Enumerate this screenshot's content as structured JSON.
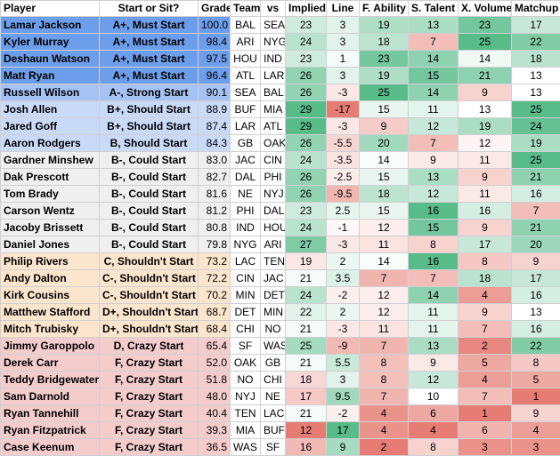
{
  "table": {
    "headers": [
      "Player",
      "Start or Sit?",
      "Grade",
      "Team",
      "vs",
      "Implied",
      "Line",
      "F. Ability",
      "S. Talent",
      "X. Volume",
      "Matchup"
    ],
    "heat_low": "#e67c73",
    "heat_mid": "#ffffff",
    "heat_high": "#57bb8a",
    "rows": [
      {
        "player": "Lamar Jackson",
        "start": "A+, Must Start",
        "grade": "100.0",
        "team": "BAL",
        "vs": "SEA",
        "implied": 23,
        "line": 3,
        "ability": 19,
        "talent": 13,
        "volume": 23,
        "matchup": 17,
        "color": "#6d9eeb"
      },
      {
        "player": "Kyler Murray",
        "start": "A+, Must Start",
        "grade": "98.4",
        "team": "ARI",
        "vs": "NYG",
        "implied": 24,
        "line": 3,
        "ability": 18,
        "talent": 7,
        "volume": 25,
        "matchup": 22,
        "color": "#6d9eeb"
      },
      {
        "player": "Deshaun Watson",
        "start": "A+, Must Start",
        "grade": "97.5",
        "team": "HOU",
        "vs": "IND",
        "implied": 23,
        "line": 1,
        "ability": 23,
        "talent": 14,
        "volume": 14,
        "matchup": 18,
        "color": "#6d9eeb"
      },
      {
        "player": "Matt Ryan",
        "start": "A+, Must Start",
        "grade": "96.4",
        "team": "ATL",
        "vs": "LAR",
        "implied": 26,
        "line": 3,
        "ability": 19,
        "talent": 15,
        "volume": 21,
        "matchup": 13,
        "color": "#6d9eeb"
      },
      {
        "player": "Russell Wilson",
        "start": "A-, Strong Start",
        "grade": "90.1",
        "team": "SEA",
        "vs": "BAL",
        "implied": 26,
        "line": -3,
        "ability": 25,
        "talent": 14,
        "volume": 9,
        "matchup": 13,
        "color": "#a4c2f4"
      },
      {
        "player": "Josh Allen",
        "start": "B+, Should Start",
        "grade": "88.9",
        "team": "BUF",
        "vs": "MIA",
        "implied": 29,
        "line": -17,
        "ability": 15,
        "talent": 11,
        "volume": 13,
        "matchup": 25,
        "color": "#c9daf8"
      },
      {
        "player": "Jared Goff",
        "start": "B+, Should Start",
        "grade": "87.4",
        "team": "LAR",
        "vs": "ATL",
        "implied": 29,
        "line": -3,
        "ability": 9,
        "talent": 12,
        "volume": 19,
        "matchup": 24,
        "color": "#c9daf8"
      },
      {
        "player": "Aaron Rodgers",
        "start": "B, Should Start",
        "grade": "84.3",
        "team": "GB",
        "vs": "OAK",
        "implied": 26,
        "line": -5.5,
        "ability": 20,
        "talent": 7,
        "volume": 12,
        "matchup": 19,
        "color": "#c9daf8"
      },
      {
        "player": "Gardner Minshew",
        "start": "B-, Could Start",
        "grade": "83.0",
        "team": "JAC",
        "vs": "CIN",
        "implied": 24,
        "line": -3.5,
        "ability": 14,
        "talent": 9,
        "volume": 11,
        "matchup": 25,
        "color": "#efefef"
      },
      {
        "player": "Dak Prescott",
        "start": "B-, Could Start",
        "grade": "82.7",
        "team": "DAL",
        "vs": "PHI",
        "implied": 26,
        "line": -2.5,
        "ability": 15,
        "talent": 13,
        "volume": 9,
        "matchup": 21,
        "color": "#efefef"
      },
      {
        "player": "Tom Brady",
        "start": "B-, Could Start",
        "grade": "81.6",
        "team": "NE",
        "vs": "NYJ",
        "implied": 26,
        "line": -9.5,
        "ability": 18,
        "talent": 12,
        "volume": 11,
        "matchup": 16,
        "color": "#efefef"
      },
      {
        "player": "Carson Wentz",
        "start": "B-, Could Start",
        "grade": "81.2",
        "team": "PHI",
        "vs": "DAL",
        "implied": 23,
        "line": 2.5,
        "ability": 15,
        "talent": 16,
        "volume": 16,
        "matchup": 7,
        "color": "#efefef"
      },
      {
        "player": "Jacoby Brissett",
        "start": "B-, Could Start",
        "grade": "80.8",
        "team": "IND",
        "vs": "HOU",
        "implied": 24,
        "line": -1,
        "ability": 12,
        "talent": 15,
        "volume": 9,
        "matchup": 21,
        "color": "#efefef"
      },
      {
        "player": "Daniel Jones",
        "start": "B-, Could Start",
        "grade": "79.8",
        "team": "NYG",
        "vs": "ARI",
        "implied": 27,
        "line": -3,
        "ability": 11,
        "talent": 8,
        "volume": 17,
        "matchup": 20,
        "color": "#efefef"
      },
      {
        "player": "Philip Rivers",
        "start": "C, Shouldn't Start",
        "grade": "73.2",
        "team": "LAC",
        "vs": "TEN",
        "implied": 19,
        "line": 2,
        "ability": 14,
        "talent": 16,
        "volume": 8,
        "matchup": 9,
        "color": "#fce5cd"
      },
      {
        "player": "Andy Dalton",
        "start": "C-, Shouldn't Start",
        "grade": "72.2",
        "team": "CIN",
        "vs": "JAC",
        "implied": 21,
        "line": 3.5,
        "ability": 7,
        "talent": 7,
        "volume": 18,
        "matchup": 17,
        "color": "#fce5cd"
      },
      {
        "player": "Kirk Cousins",
        "start": "C-, Shouldn't Start",
        "grade": "70.2",
        "team": "MIN",
        "vs": "DET",
        "implied": 24,
        "line": -2,
        "ability": 12,
        "talent": 14,
        "volume": 4,
        "matchup": 16,
        "color": "#fce5cd"
      },
      {
        "player": "Matthew Stafford",
        "start": "D+, Shouldn't Start",
        "grade": "68.7",
        "team": "DET",
        "vs": "MIN",
        "implied": 22,
        "line": 2,
        "ability": 12,
        "talent": 11,
        "volume": 9,
        "matchup": 13,
        "color": "#fce5cd"
      },
      {
        "player": "Mitch Trubisky",
        "start": "D+, Shouldn't Start",
        "grade": "68.4",
        "team": "CHI",
        "vs": "NO",
        "implied": 21,
        "line": -3,
        "ability": 11,
        "talent": 11,
        "volume": 7,
        "matchup": 16,
        "color": "#fce5cd"
      },
      {
        "player": "Jimmy Garoppolo",
        "start": "D, Crazy Start",
        "grade": "65.4",
        "team": "SF",
        "vs": "WAS",
        "implied": 25,
        "line": -9,
        "ability": 7,
        "talent": 13,
        "volume": 2,
        "matchup": 22,
        "color": "#f4cccc"
      },
      {
        "player": "Derek Carr",
        "start": "F, Crazy Start",
        "grade": "52.0",
        "team": "OAK",
        "vs": "GB",
        "implied": 21,
        "line": 5.5,
        "ability": 8,
        "talent": 9,
        "volume": 5,
        "matchup": 8,
        "color": "#f4cccc"
      },
      {
        "player": "Teddy Bridgewater",
        "start": "F, Crazy Start",
        "grade": "51.8",
        "team": "NO",
        "vs": "CHI",
        "implied": 18,
        "line": 3,
        "ability": 8,
        "talent": 12,
        "volume": 4,
        "matchup": 5,
        "color": "#f4cccc"
      },
      {
        "player": "Sam Darnold",
        "start": "F, Crazy Start",
        "grade": "48.0",
        "team": "NYJ",
        "vs": "NE",
        "implied": 17,
        "line": 9.5,
        "ability": 7,
        "talent": 10,
        "volume": 7,
        "matchup": 1,
        "color": "#f4cccc"
      },
      {
        "player": "Ryan Tannehill",
        "start": "F, Crazy Start",
        "grade": "40.4",
        "team": "TEN",
        "vs": "LAC",
        "implied": 21,
        "line": -2,
        "ability": 4,
        "talent": 6,
        "volume": 1,
        "matchup": 9,
        "color": "#f4cccc"
      },
      {
        "player": "Ryan Fitzpatrick",
        "start": "F, Crazy Start",
        "grade": "39.3",
        "team": "MIA",
        "vs": "BUF",
        "implied": 12,
        "line": 17,
        "ability": 4,
        "talent": 4,
        "volume": 6,
        "matchup": 4,
        "color": "#f4cccc"
      },
      {
        "player": "Case Keenum",
        "start": "F, Crazy Start",
        "grade": "36.5",
        "team": "WAS",
        "vs": "SF",
        "implied": 16,
        "line": 9,
        "ability": 2,
        "talent": 8,
        "volume": 3,
        "matchup": 3,
        "color": "#f4cccc"
      }
    ]
  }
}
